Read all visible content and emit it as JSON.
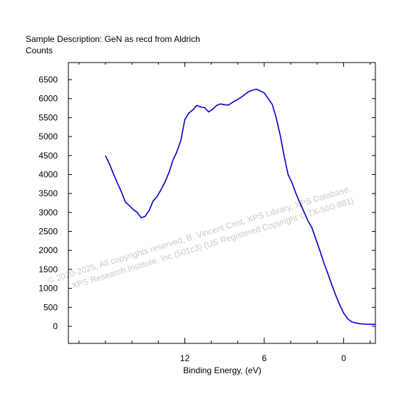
{
  "chart_data": {
    "type": "line",
    "title": "Sample Description:  GeN as recd from Aldrich",
    "ylabel": "Counts",
    "xlabel": "Binding Energy, (eV)",
    "x_reversed": true,
    "xlim": [
      20.8,
      -2.4
    ],
    "ylim": [
      -450,
      6950
    ],
    "xticks": [
      {
        "value": 12,
        "label": "12"
      },
      {
        "value": 6,
        "label": "6"
      },
      {
        "value": 0,
        "label": "0"
      }
    ],
    "yticks": [
      {
        "value": 6500,
        "label": "6500"
      },
      {
        "value": 6000,
        "label": "6000"
      },
      {
        "value": 5500,
        "label": "5500"
      },
      {
        "value": 5000,
        "label": "5000"
      },
      {
        "value": 4500,
        "label": "4500"
      },
      {
        "value": 4000,
        "label": "4000"
      },
      {
        "value": 3500,
        "label": "3500"
      },
      {
        "value": 3000,
        "label": "3000"
      },
      {
        "value": 2500,
        "label": "2500"
      },
      {
        "value": 2000,
        "label": "2000"
      },
      {
        "value": 1500,
        "label": "1500"
      },
      {
        "value": 1000,
        "label": "1000"
      },
      {
        "value": 500,
        "label": "500"
      },
      {
        "value": 0,
        "label": "0"
      }
    ],
    "minor_xticks": [
      20,
      18,
      16,
      14,
      10,
      8,
      4,
      2,
      -2
    ],
    "grid": false,
    "series": [
      {
        "color": "#0000cc",
        "x": [
          18.0,
          17.7,
          17.4,
          17.1,
          16.8,
          16.5,
          16.2,
          15.9,
          15.6,
          15.3,
          15.0,
          14.7,
          14.4,
          14.1,
          13.8,
          13.5,
          13.2,
          12.9,
          12.6,
          12.3,
          12.0,
          11.7,
          11.4,
          11.1,
          10.8,
          10.5,
          10.2,
          9.9,
          9.6,
          9.3,
          9.0,
          8.7,
          8.4,
          8.1,
          7.8,
          7.5,
          7.2,
          6.9,
          6.6,
          6.3,
          6.0,
          5.7,
          5.4,
          5.1,
          4.8,
          4.5,
          4.2,
          3.9,
          3.6,
          3.3,
          3.0,
          2.7,
          2.4,
          2.1,
          1.8,
          1.5,
          1.2,
          0.9,
          0.6,
          0.3,
          0.0,
          -0.3,
          -0.6,
          -0.9,
          -1.2,
          -1.5,
          -1.8,
          -2.1,
          -2.4
        ],
        "y": [
          4500,
          4280,
          4020,
          3780,
          3550,
          3280,
          3180,
          3080,
          3000,
          2860,
          2900,
          3050,
          3300,
          3420,
          3600,
          3800,
          4050,
          4380,
          4600,
          4900,
          5450,
          5620,
          5700,
          5820,
          5780,
          5760,
          5650,
          5720,
          5820,
          5860,
          5840,
          5830,
          5900,
          5960,
          6020,
          6100,
          6180,
          6220,
          6250,
          6200,
          6150,
          6000,
          5850,
          5500,
          5050,
          4500,
          4000,
          3780,
          3500,
          3250,
          3020,
          2780,
          2600,
          2300,
          2000,
          1680,
          1400,
          1100,
          820,
          570,
          350,
          200,
          120,
          90,
          70,
          60,
          55,
          52,
          50
        ]
      }
    ]
  },
  "watermark": {
    "line1": "© 2020-2025,  All copyrights reserved,   B. Vincent Crist,  XPS Library, XPS Database,",
    "line2": "XPS Research Institute, Inc (501c3)   (US Registered Copyright © TX-560-881)"
  }
}
